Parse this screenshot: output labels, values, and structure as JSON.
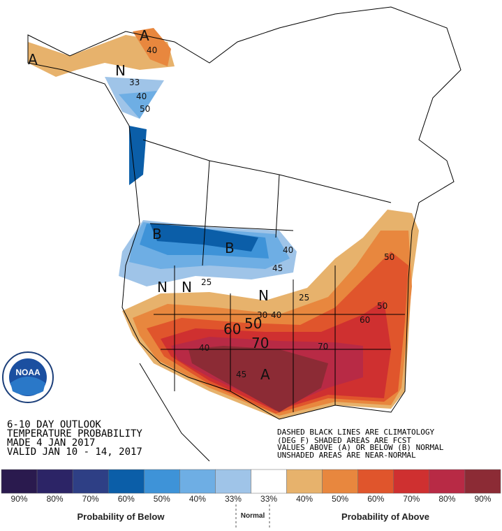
{
  "header": {
    "lines": [
      "6-10 DAY OUTLOOK",
      "TEMPERATURE PROBABILITY",
      "MADE  4 JAN 2017",
      "VALID  JAN 10 - 14, 2017"
    ]
  },
  "note": {
    "lines": [
      "DASHED BLACK LINES ARE CLIMATOLOGY",
      "(DEG F) SHADED AREAS ARE FCST",
      "VALUES ABOVE (A) OR BELOW (B) NORMAL",
      "UNSHADED AREAS ARE NEAR-NORMAL"
    ]
  },
  "logo": {
    "text": "NOAA"
  },
  "map_labels": [
    "A",
    "N",
    "N",
    "B",
    "B",
    "N",
    "N",
    "A",
    "A",
    "40",
    "33",
    "40",
    "50",
    "25",
    "45",
    "40",
    "25",
    "40",
    "30",
    "50",
    "60",
    "70",
    "60",
    "50",
    "50",
    "40",
    "45",
    "70"
  ],
  "legend": {
    "items": [
      {
        "color": "#2a1a4e",
        "label": "90%"
      },
      {
        "color": "#2c2466",
        "label": "80%"
      },
      {
        "color": "#2e3f85",
        "label": "70%"
      },
      {
        "color": "#0b5ea8",
        "label": "60%"
      },
      {
        "color": "#3e93d8",
        "label": "50%"
      },
      {
        "color": "#6eaee4",
        "label": "40%"
      },
      {
        "color": "#9fc4e8",
        "label": "33%"
      },
      {
        "color": "#ffffff",
        "label": "33%"
      },
      {
        "color": "#e7b26c",
        "label": "40%"
      },
      {
        "color": "#e8873e",
        "label": "50%"
      },
      {
        "color": "#e0552c",
        "label": "60%"
      },
      {
        "color": "#cf3030",
        "label": "70%"
      },
      {
        "color": "#b82a45",
        "label": "80%"
      },
      {
        "color": "#8c2b35",
        "label": "90%"
      }
    ],
    "below": "Probability of Below",
    "normal": "Normal",
    "above": "Probability of Above"
  }
}
